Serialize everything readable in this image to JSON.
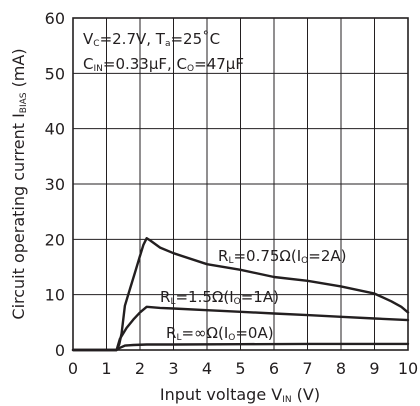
{
  "chart_data": {
    "type": "line",
    "xlabel": {
      "main": "Input voltage V",
      "sub": "IN",
      "tail": " (V)"
    },
    "ylabel": {
      "main": "Circuit operating current  I",
      "sub": "BIAS",
      "tail": "  (mA)"
    },
    "xlim": [
      0,
      10
    ],
    "ylim": [
      0,
      60
    ],
    "xticks": [
      "0",
      "1",
      "2",
      "3",
      "4",
      "5",
      "6",
      "7",
      "8",
      "9",
      "10"
    ],
    "yticks": [
      "0",
      "10",
      "20",
      "30",
      "40",
      "50",
      "60"
    ],
    "grid": true,
    "conditions": {
      "line1": {
        "a": "V",
        "a_sub": "C",
        "b": "=2.7V, T",
        "b_sub": "a",
        "c": "=25˚C"
      },
      "line2": {
        "a": "C",
        "a_sub": "IN",
        "b": "=0.33μF, C",
        "b_sub": "O",
        "c": "=47μF"
      }
    },
    "series": [
      {
        "label": {
          "a": "R",
          "a_sub": "L",
          "b": "=0.75Ω(I",
          "b_sub": "O",
          "c": "=2A)"
        },
        "x": [
          0,
          1.3,
          1.38,
          1.45,
          1.55,
          1.7,
          1.85,
          2.0,
          2.1,
          2.2,
          2.3,
          2.6,
          3.0,
          4.0,
          5.0,
          6.0,
          7.0,
          8.0,
          9.0,
          9.5,
          9.8,
          10.0
        ],
        "y": [
          0,
          0,
          1,
          3,
          8,
          11,
          14,
          17,
          19,
          20.2,
          19.8,
          18.5,
          17.5,
          15.5,
          14.5,
          13.2,
          12.5,
          11.5,
          10.2,
          8.8,
          7.8,
          6.8
        ]
      },
      {
        "label": {
          "a": "R",
          "a_sub": "L",
          "b": "=1.5Ω(I",
          "b_sub": "O",
          "c": "=1A)"
        },
        "x": [
          0,
          1.3,
          1.4,
          1.6,
          1.8,
          2.0,
          2.2,
          2.6,
          3.0,
          4.0,
          5.0,
          6.0,
          7.0,
          8.0,
          9.0,
          10.0
        ],
        "y": [
          0,
          0,
          2,
          4,
          5.5,
          6.8,
          7.8,
          7.6,
          7.5,
          7.2,
          6.9,
          6.6,
          6.3,
          6.0,
          5.7,
          5.4
        ]
      },
      {
        "label": {
          "a": "R",
          "a_sub": "L",
          "b": "=∞Ω(I",
          "b_sub": "O",
          "c": "=0A)"
        },
        "x": [
          0,
          1.3,
          1.4,
          1.55,
          1.8,
          2.2,
          3.0,
          5.0,
          7.0,
          10.0
        ],
        "y": [
          0,
          0,
          0.4,
          0.8,
          0.9,
          1.0,
          1.0,
          1.05,
          1.1,
          1.1
        ]
      }
    ]
  }
}
